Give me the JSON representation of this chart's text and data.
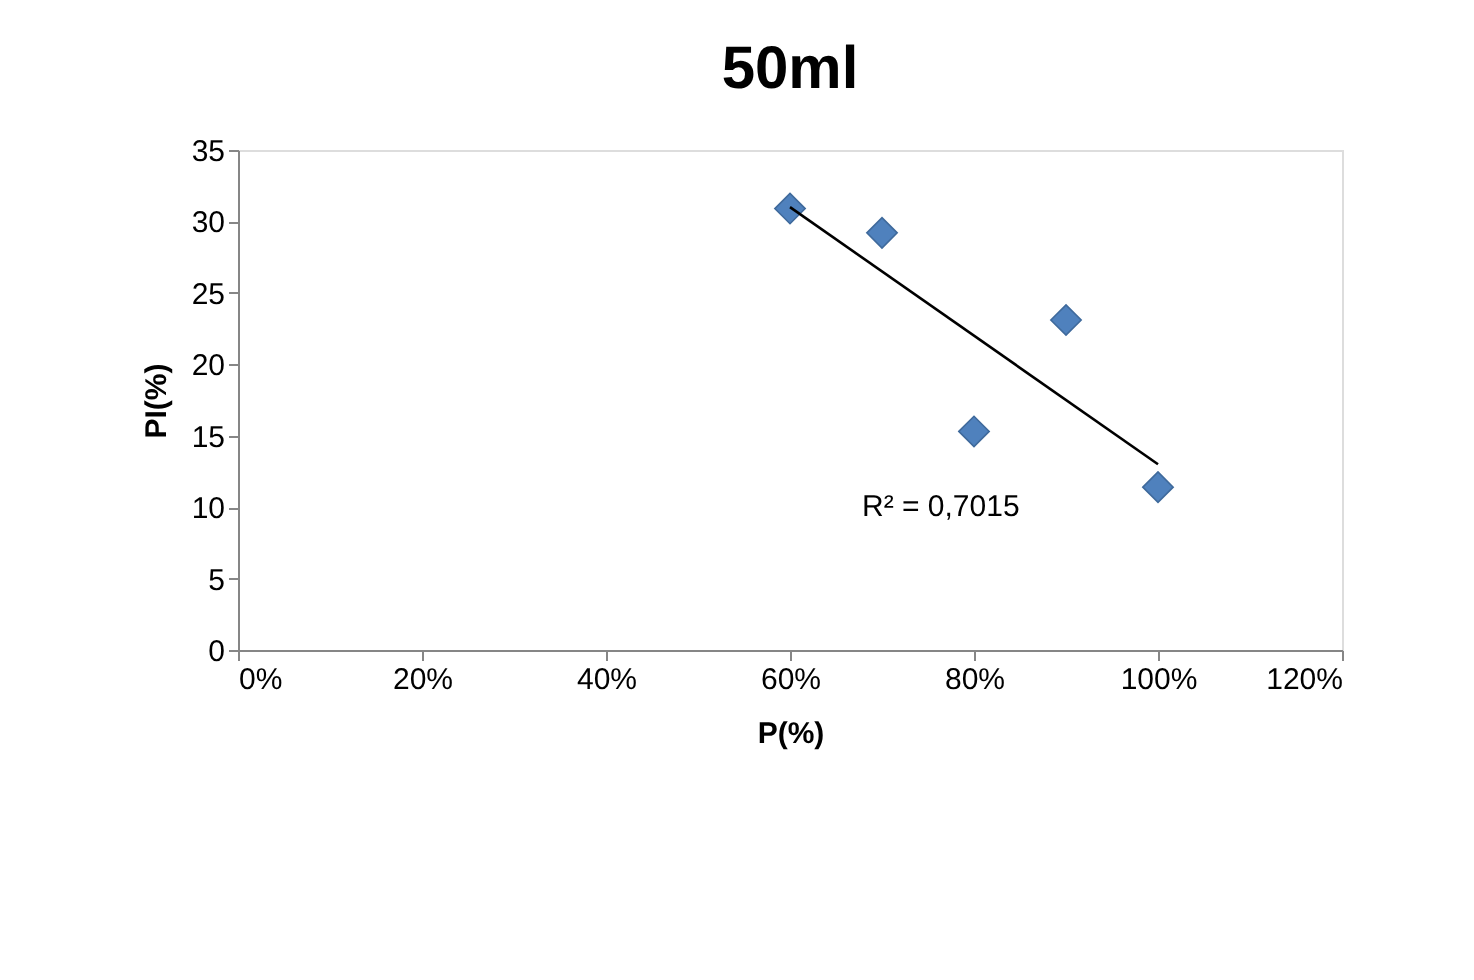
{
  "chart_data": {
    "type": "scatter",
    "title": "50ml",
    "xlabel": "P(%)",
    "ylabel": "PI(%)",
    "xlim": [
      0,
      1.2
    ],
    "xticks": [
      {
        "value": 0,
        "label": "0%"
      },
      {
        "value": 0.2,
        "label": "20%"
      },
      {
        "value": 0.4,
        "label": "40%"
      },
      {
        "value": 0.6,
        "label": "60%"
      },
      {
        "value": 0.8,
        "label": "80%"
      },
      {
        "value": 1.0,
        "label": "100%"
      },
      {
        "value": 1.2,
        "label": "120%"
      }
    ],
    "ylim": [
      0,
      35
    ],
    "yticks": [
      0,
      5,
      10,
      15,
      20,
      25,
      30,
      35
    ],
    "series": [
      {
        "type": "scatter",
        "color": "#4f81bd",
        "marker": "diamond",
        "x": [
          0.6,
          0.7,
          0.8,
          0.9,
          1.0
        ],
        "values": [
          30.9,
          29.2,
          15.3,
          23.1,
          11.4
        ]
      },
      {
        "type": "line",
        "color": "#000000",
        "marker": "none",
        "line_style": "solid",
        "x": [
          0.6,
          1.0
        ],
        "values": [
          31.0,
          13.0
        ]
      }
    ],
    "annotations": [
      "R² = 0,7015"
    ],
    "grid": false,
    "legend": false
  }
}
